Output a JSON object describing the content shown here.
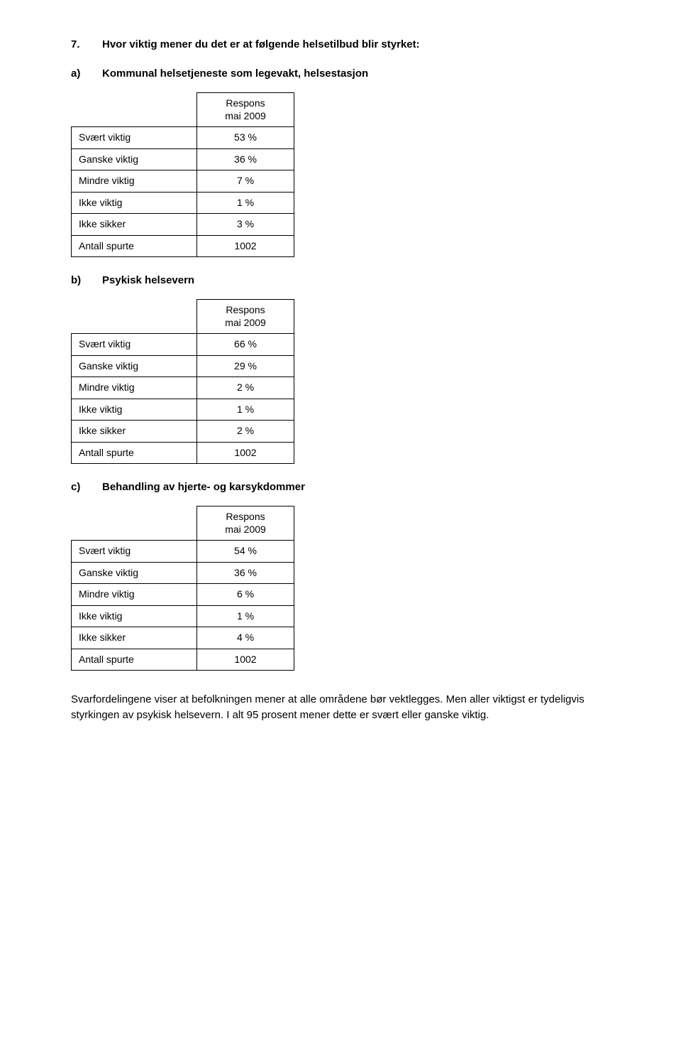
{
  "question": {
    "number": "7.",
    "text": "Hvor viktig mener du det er at følgende helsetilbud blir styrket:"
  },
  "column_header_l1": "Respons",
  "column_header_l2": "mai 2009",
  "row_labels": {
    "svaert_viktig": "Svært viktig",
    "ganske_viktig": "Ganske viktig",
    "mindre_viktig": "Mindre viktig",
    "ikke_viktig": "Ikke viktig",
    "ikke_sikker": "Ikke sikker",
    "antall_spurte": "Antall spurte"
  },
  "sections": {
    "a": {
      "letter": "a)",
      "title": "Kommunal helsetjeneste som legevakt, helsestasjon",
      "values": {
        "svaert_viktig": "53 %",
        "ganske_viktig": "36 %",
        "mindre_viktig": "7 %",
        "ikke_viktig": "1 %",
        "ikke_sikker": "3 %",
        "antall_spurte": "1002"
      }
    },
    "b": {
      "letter": "b)",
      "title": "Psykisk helsevern",
      "values": {
        "svaert_viktig": "66 %",
        "ganske_viktig": "29 %",
        "mindre_viktig": "2 %",
        "ikke_viktig": "1 %",
        "ikke_sikker": "2 %",
        "antall_spurte": "1002"
      }
    },
    "c": {
      "letter": "c)",
      "title": "Behandling av hjerte- og karsykdommer",
      "values": {
        "svaert_viktig": "54 %",
        "ganske_viktig": "36 %",
        "mindre_viktig": "6 %",
        "ikke_viktig": "1 %",
        "ikke_sikker": "4 %",
        "antall_spurte": "1002"
      }
    }
  },
  "footer_paragraph": "Svarfordelingene viser at befolkningen mener at alle områdene bør vektlegges. Men aller viktigst er tydeligvis styrkingen av psykisk helsevern. I alt 95 prosent mener dette er svært eller ganske viktig."
}
